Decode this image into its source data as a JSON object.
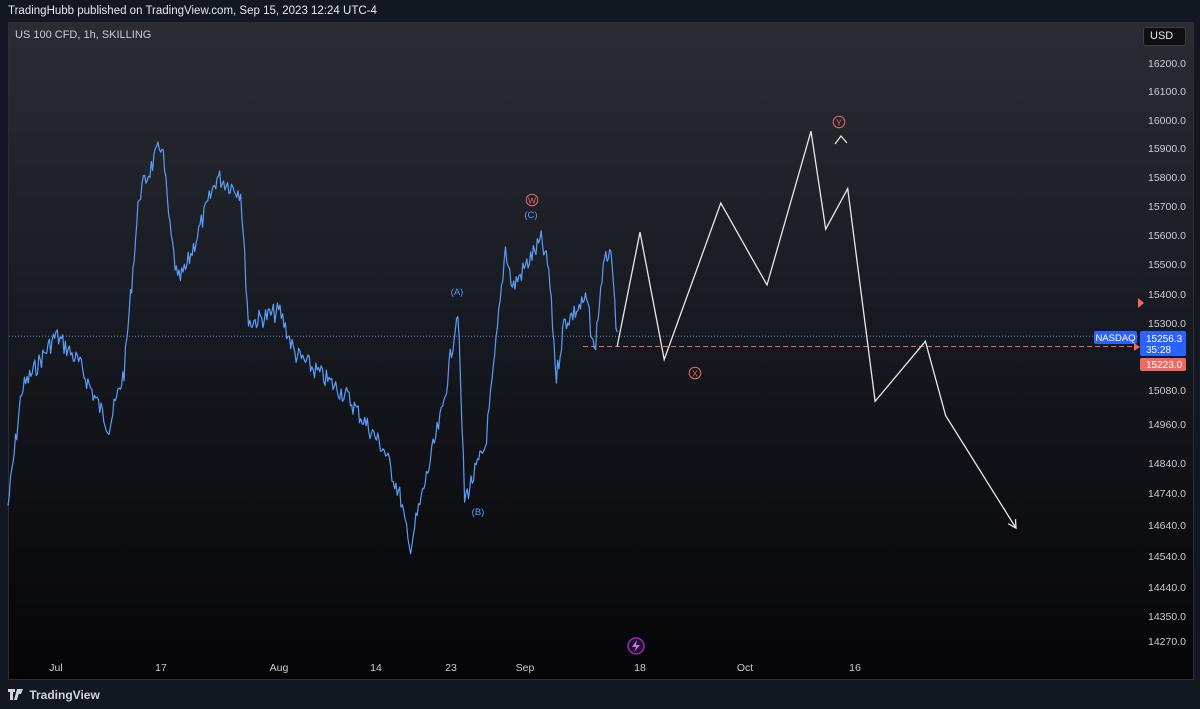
{
  "header": {
    "published_text": "TradingHubb published on TradingView.com, Sep 15, 2023 12:24 UTC-4"
  },
  "toolbar": {
    "symbol_text": "US 100 CFD, 1h, SKILLING",
    "currency": "USD"
  },
  "footer": {
    "logo_text": "TradingView"
  },
  "colors": {
    "price_line": "#5b9cf6",
    "projection": "#e8e8e8",
    "wave_red": "#f06a63",
    "wave_blue": "#5b9cf6",
    "accent_blue": "#2962ff",
    "alert_purple": "#9c27b0"
  },
  "icons": {
    "alert": "lightning-icon",
    "logo": "tradingview-logo-icon",
    "flag": "price-flag-icon"
  },
  "chart_data": {
    "type": "line",
    "instrument": "US 100 CFD",
    "timeframe": "1h",
    "grid": false,
    "legend": "none",
    "y_axis": {
      "side": "right",
      "ticks": [
        "16200.0",
        "16100.0",
        "16000.0",
        "15900.0",
        "15800.0",
        "15700.0",
        "15600.0",
        "15500.0",
        "15400.0",
        "15300.0",
        "15080.0",
        "14960.0",
        "14840.0",
        "14740.0",
        "14640.0",
        "14540.0",
        "14440.0",
        "14350.0",
        "14270.0"
      ]
    },
    "x_axis": {
      "ticks": [
        "Jul",
        "17",
        "Aug",
        "14",
        "23",
        "Sep",
        "18",
        "Oct",
        "16"
      ]
    },
    "price_labels": [
      {
        "text": "NASDAQ",
        "kind": "symbol"
      },
      {
        "text": "15256.3",
        "kind": "last_price"
      },
      {
        "text": "35:28",
        "kind": "countdown"
      },
      {
        "text": "15223.0",
        "kind": "level"
      }
    ],
    "wave_labels": [
      {
        "text": "(A)",
        "color": "blue"
      },
      {
        "text": "(B)",
        "color": "blue"
      },
      {
        "text": "(C)",
        "color": "blue"
      },
      {
        "text": "W",
        "color": "red"
      },
      {
        "text": "X",
        "color": "red"
      },
      {
        "text": "Y",
        "color": "red"
      }
    ],
    "series": [
      {
        "kind": "price",
        "x": [
          "Jun 26",
          "Jun 28",
          "Jul 3",
          "Jul 6",
          "Jul 10",
          "Jul 12",
          "Jul 14",
          "Jul 17",
          "Jul 18",
          "Jul 19",
          "Jul 20",
          "Jul 24",
          "Jul 27",
          "Jul 28",
          "Aug 1",
          "Aug 3",
          "Aug 8",
          "Aug 10",
          "Aug 15",
          "Aug 17",
          "Aug 18",
          "Aug 21",
          "Aug 22",
          "Aug 24",
          "Aug 25",
          "Aug 28",
          "Aug 29",
          "Aug 31",
          "Sep 1",
          "Sep 5",
          "Sep 6",
          "Sep 7",
          "Sep 8",
          "Sep 11",
          "Sep 12",
          "Sep 13",
          "Sep 14",
          "Sep 15"
        ],
        "y": [
          14700,
          15080,
          15260,
          15170,
          14950,
          15140,
          15740,
          15920,
          15620,
          15440,
          15480,
          15800,
          15750,
          15300,
          15340,
          15200,
          15100,
          15060,
          14880,
          14720,
          14560,
          14900,
          15010,
          15350,
          14720,
          14890,
          15090,
          15560,
          15420,
          15580,
          15480,
          15120,
          15300,
          15380,
          15200,
          15460,
          15560,
          15270
        ]
      },
      {
        "kind": "projection",
        "x": [
          "Sep 15",
          "Sep 18",
          "Sep 21",
          "Sep 28",
          "Oct 4",
          "Oct 10",
          "Oct 12",
          "Oct 15",
          "Oct 18",
          "Oct 23",
          "Oct 25",
          "Nov 1"
        ],
        "y": [
          15223,
          15610,
          15180,
          15710,
          15430,
          15960,
          15620,
          15760,
          15040,
          15240,
          14990,
          14630
        ]
      }
    ]
  }
}
